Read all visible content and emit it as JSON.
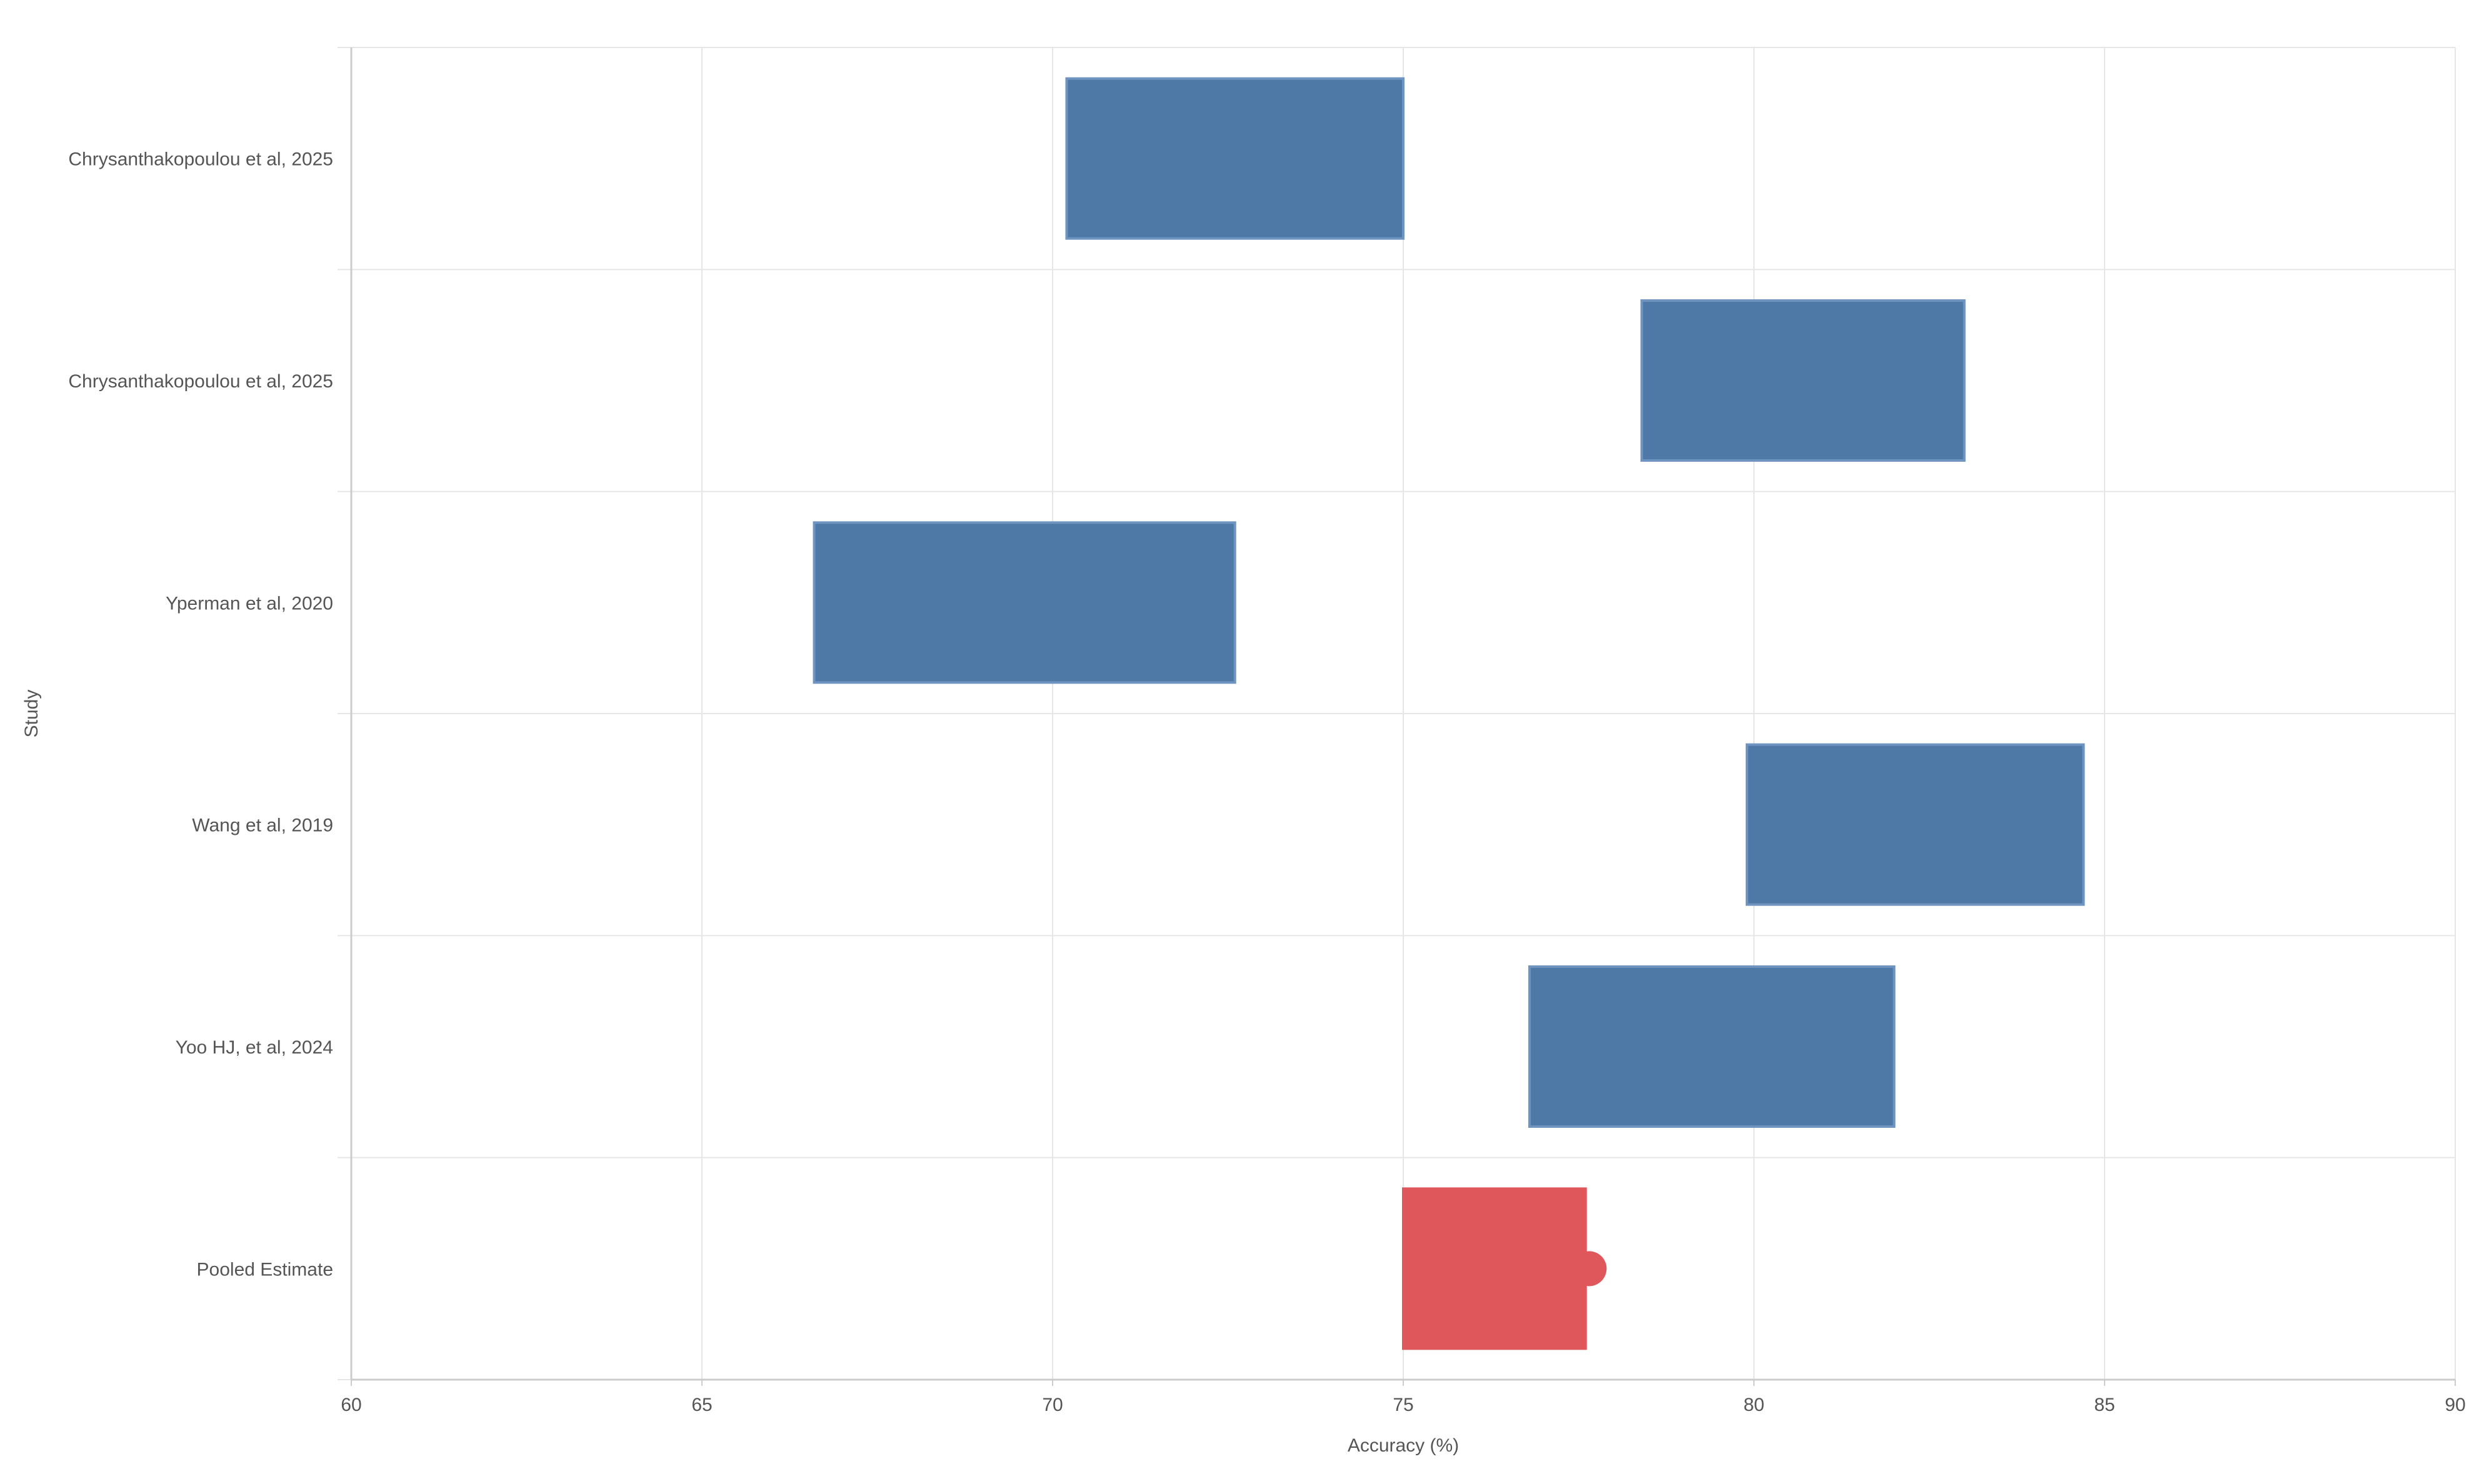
{
  "chart_data": {
    "type": "bar",
    "orientation": "horizontal",
    "title": "",
    "xlabel": "Accuracy (%)",
    "ylabel": "Study",
    "xlim": [
      60,
      90
    ],
    "xticks": [
      60,
      65,
      70,
      75,
      80,
      85,
      90
    ],
    "grid": true,
    "legend": "none",
    "categories": [
      "Chrysanthakopoulou et al, 2025",
      "Chrysanthakopoulou et al, 2025",
      "Yperman et al, 2020",
      "Wang et al, 2019",
      "Yoo HJ, et al, 2024",
      "Pooled Estimate"
    ],
    "ranges": [
      {
        "low": 70.2,
        "high": 75.0
      },
      {
        "low": 78.4,
        "high": 83.0
      },
      {
        "low": 66.6,
        "high": 72.6
      },
      {
        "low": 79.9,
        "high": 84.7
      },
      {
        "low": 76.8,
        "high": 82.0
      },
      {
        "low": 75.0,
        "high": 77.6
      }
    ],
    "pooled_point": 77.65,
    "colors": {
      "study": "#4e78a6",
      "study_edge": "#6f94c0",
      "pooled": "#e0575b",
      "grid": "#e6e6e6",
      "axis": "#cccccc",
      "text": "#555555"
    }
  }
}
